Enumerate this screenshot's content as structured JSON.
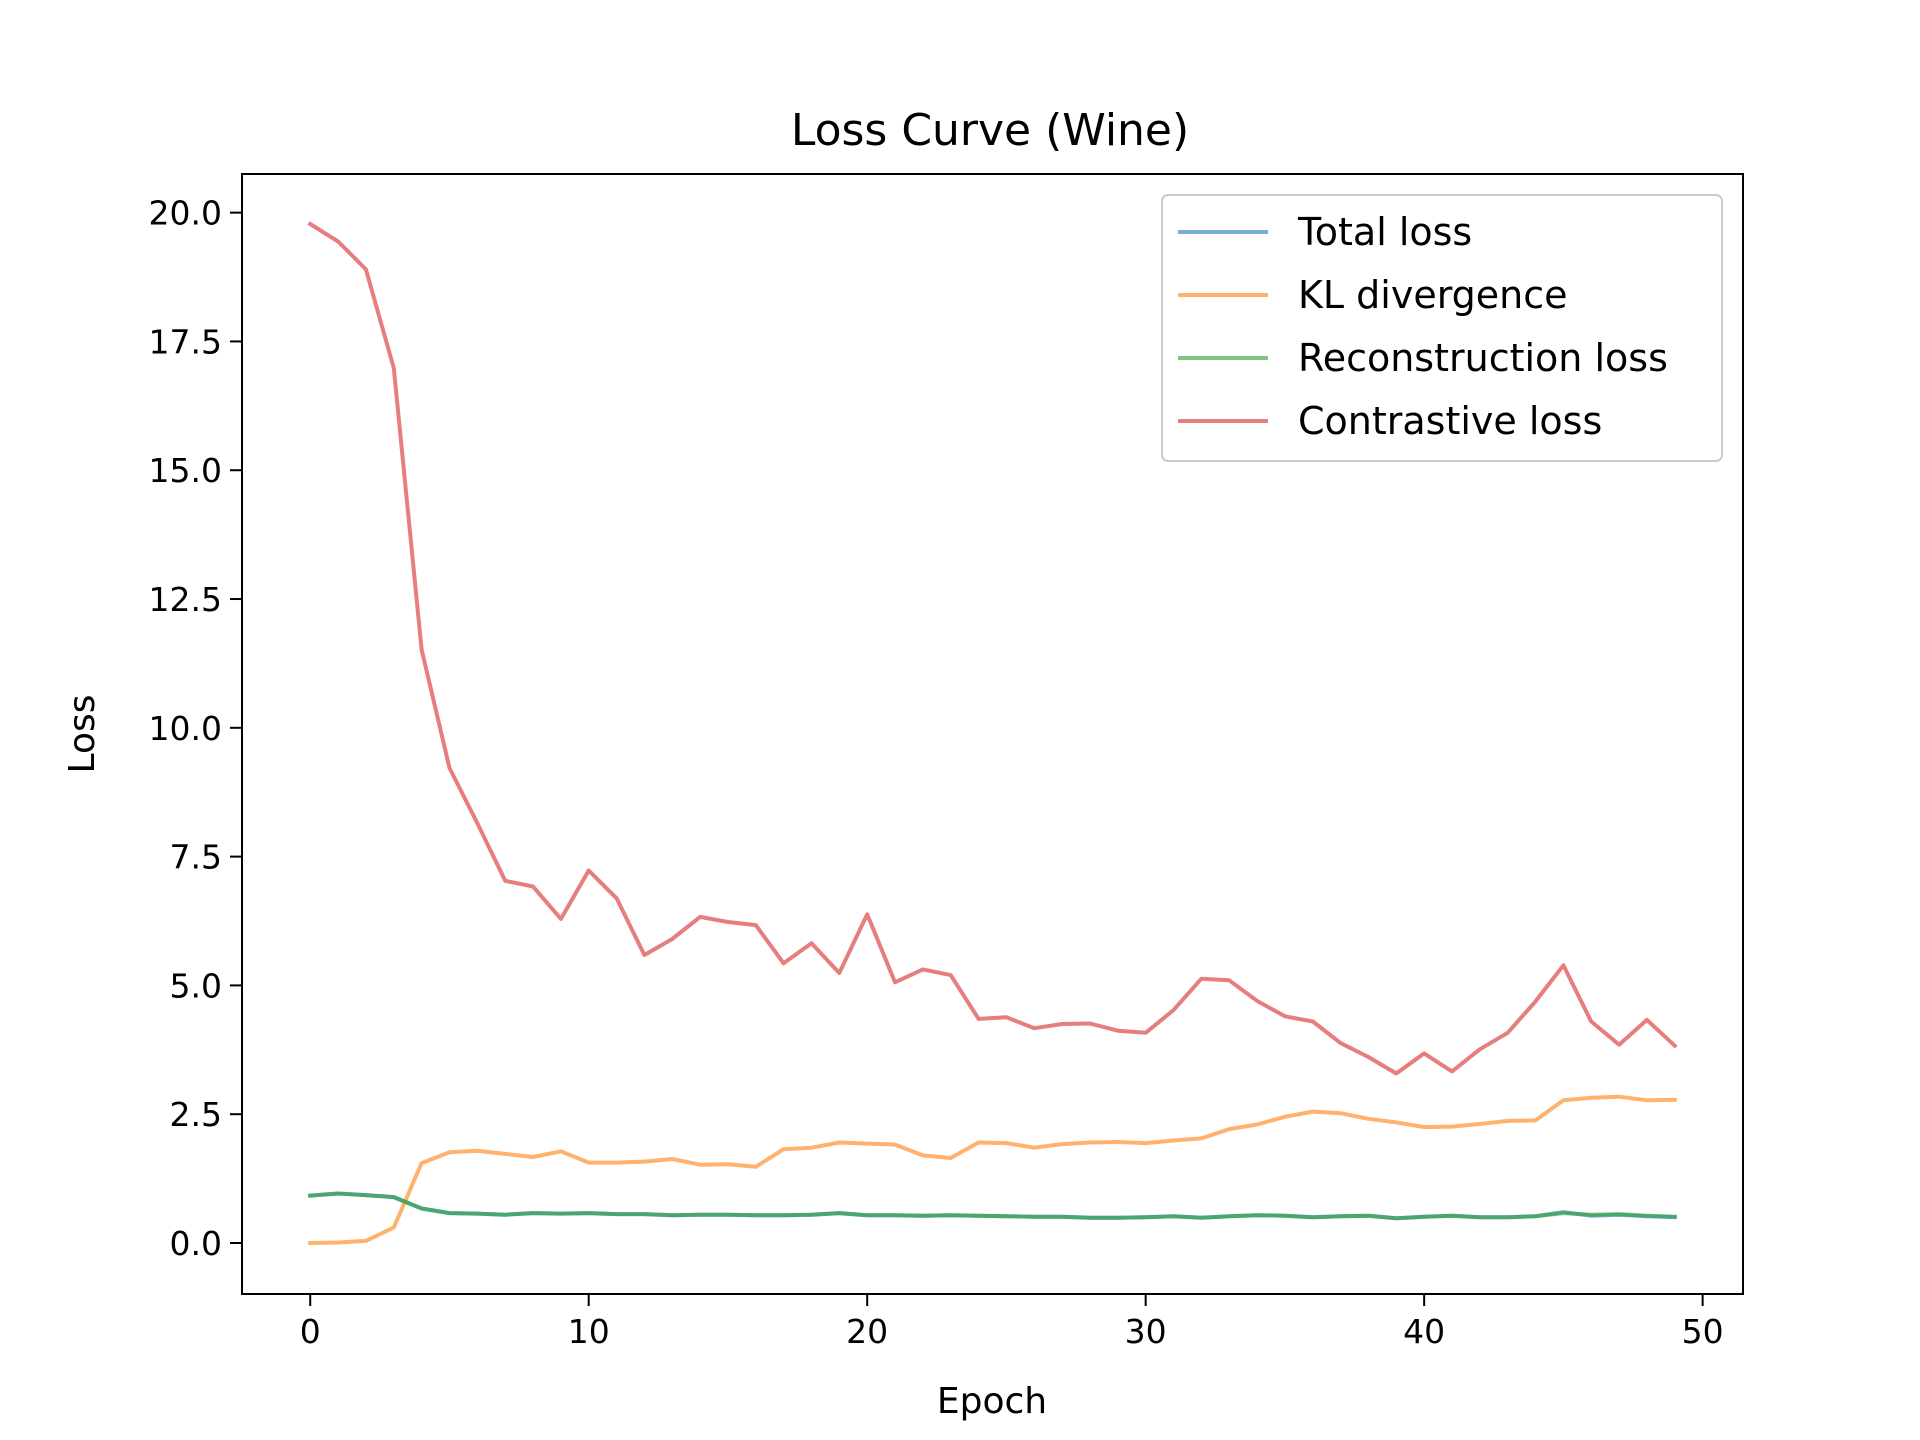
{
  "chart_data": {
    "type": "line",
    "title": "Loss Curve (Wine)",
    "xlabel": "Epoch",
    "ylabel": "Loss",
    "xlim": [
      -2.45,
      51.45
    ],
    "ylim": [
      -0.99,
      20.75
    ],
    "xticks": [
      0,
      10,
      20,
      30,
      40,
      50
    ],
    "xtick_labels": [
      "0",
      "10",
      "20",
      "30",
      "40",
      "50"
    ],
    "yticks": [
      0,
      2.5,
      5,
      7.5,
      10,
      12.5,
      15,
      17.5,
      20
    ],
    "ytick_labels": [
      "0.0",
      "2.5",
      "5.0",
      "7.5",
      "10.0",
      "12.5",
      "15.0",
      "17.5",
      "20.0"
    ],
    "grid": false,
    "legend_position": "top-right",
    "x": [
      0,
      1,
      2,
      3,
      4,
      5,
      6,
      7,
      8,
      9,
      10,
      11,
      12,
      13,
      14,
      15,
      16,
      17,
      18,
      19,
      20,
      21,
      22,
      23,
      24,
      25,
      26,
      27,
      28,
      29,
      30,
      31,
      32,
      33,
      34,
      35,
      36,
      37,
      38,
      39,
      40,
      41,
      42,
      43,
      44,
      45,
      46,
      47,
      48,
      49
    ],
    "series": [
      {
        "name": "Total loss",
        "color": "#1f77b4",
        "values": [
          0.92,
          0.96,
          0.93,
          0.89,
          0.67,
          0.58,
          0.57,
          0.55,
          0.58,
          0.57,
          0.58,
          0.56,
          0.56,
          0.54,
          0.55,
          0.55,
          0.54,
          0.54,
          0.55,
          0.58,
          0.54,
          0.54,
          0.53,
          0.54,
          0.53,
          0.52,
          0.51,
          0.51,
          0.49,
          0.49,
          0.5,
          0.52,
          0.49,
          0.52,
          0.54,
          0.53,
          0.5,
          0.52,
          0.53,
          0.48,
          0.51,
          0.53,
          0.5,
          0.5,
          0.52,
          0.6,
          0.53,
          0.55,
          0.52,
          0.5
        ]
      },
      {
        "name": "KL divergence",
        "color": "#ff7f0e",
        "values": [
          0.0,
          0.01,
          0.04,
          0.3,
          1.55,
          1.76,
          1.79,
          1.73,
          1.67,
          1.78,
          1.56,
          1.56,
          1.58,
          1.63,
          1.52,
          1.53,
          1.48,
          1.82,
          1.85,
          1.95,
          1.93,
          1.91,
          1.7,
          1.65,
          1.95,
          1.94,
          1.85,
          1.92,
          1.95,
          1.96,
          1.94,
          1.99,
          2.03,
          2.21,
          2.3,
          2.45,
          2.55,
          2.52,
          2.41,
          2.34,
          2.25,
          2.26,
          2.31,
          2.37,
          2.38,
          2.77,
          2.82,
          2.84,
          2.77,
          2.78
        ]
      },
      {
        "name": "Reconstruction loss",
        "color": "#2ca02c",
        "values": [
          0.92,
          0.96,
          0.93,
          0.89,
          0.67,
          0.58,
          0.57,
          0.55,
          0.58,
          0.57,
          0.58,
          0.56,
          0.56,
          0.54,
          0.55,
          0.55,
          0.54,
          0.54,
          0.55,
          0.58,
          0.54,
          0.54,
          0.53,
          0.54,
          0.53,
          0.52,
          0.51,
          0.51,
          0.49,
          0.49,
          0.5,
          0.52,
          0.49,
          0.52,
          0.54,
          0.53,
          0.5,
          0.52,
          0.53,
          0.48,
          0.51,
          0.53,
          0.5,
          0.5,
          0.52,
          0.58,
          0.55,
          0.56,
          0.53,
          0.51
        ]
      },
      {
        "name": "Contrastive loss",
        "color": "#d62728",
        "values": [
          19.78,
          19.44,
          18.9,
          16.98,
          11.52,
          9.22,
          8.15,
          7.03,
          6.92,
          6.29,
          7.23,
          6.69,
          5.59,
          5.9,
          6.33,
          6.23,
          6.17,
          5.43,
          5.82,
          5.24,
          6.38,
          5.06,
          5.31,
          5.2,
          4.35,
          4.38,
          4.17,
          4.25,
          4.26,
          4.12,
          4.08,
          4.52,
          5.13,
          5.1,
          4.7,
          4.4,
          4.3,
          3.88,
          3.61,
          3.29,
          3.68,
          3.33,
          3.76,
          4.08,
          4.69,
          5.39,
          4.3,
          3.85,
          4.33,
          3.83
        ]
      }
    ]
  }
}
